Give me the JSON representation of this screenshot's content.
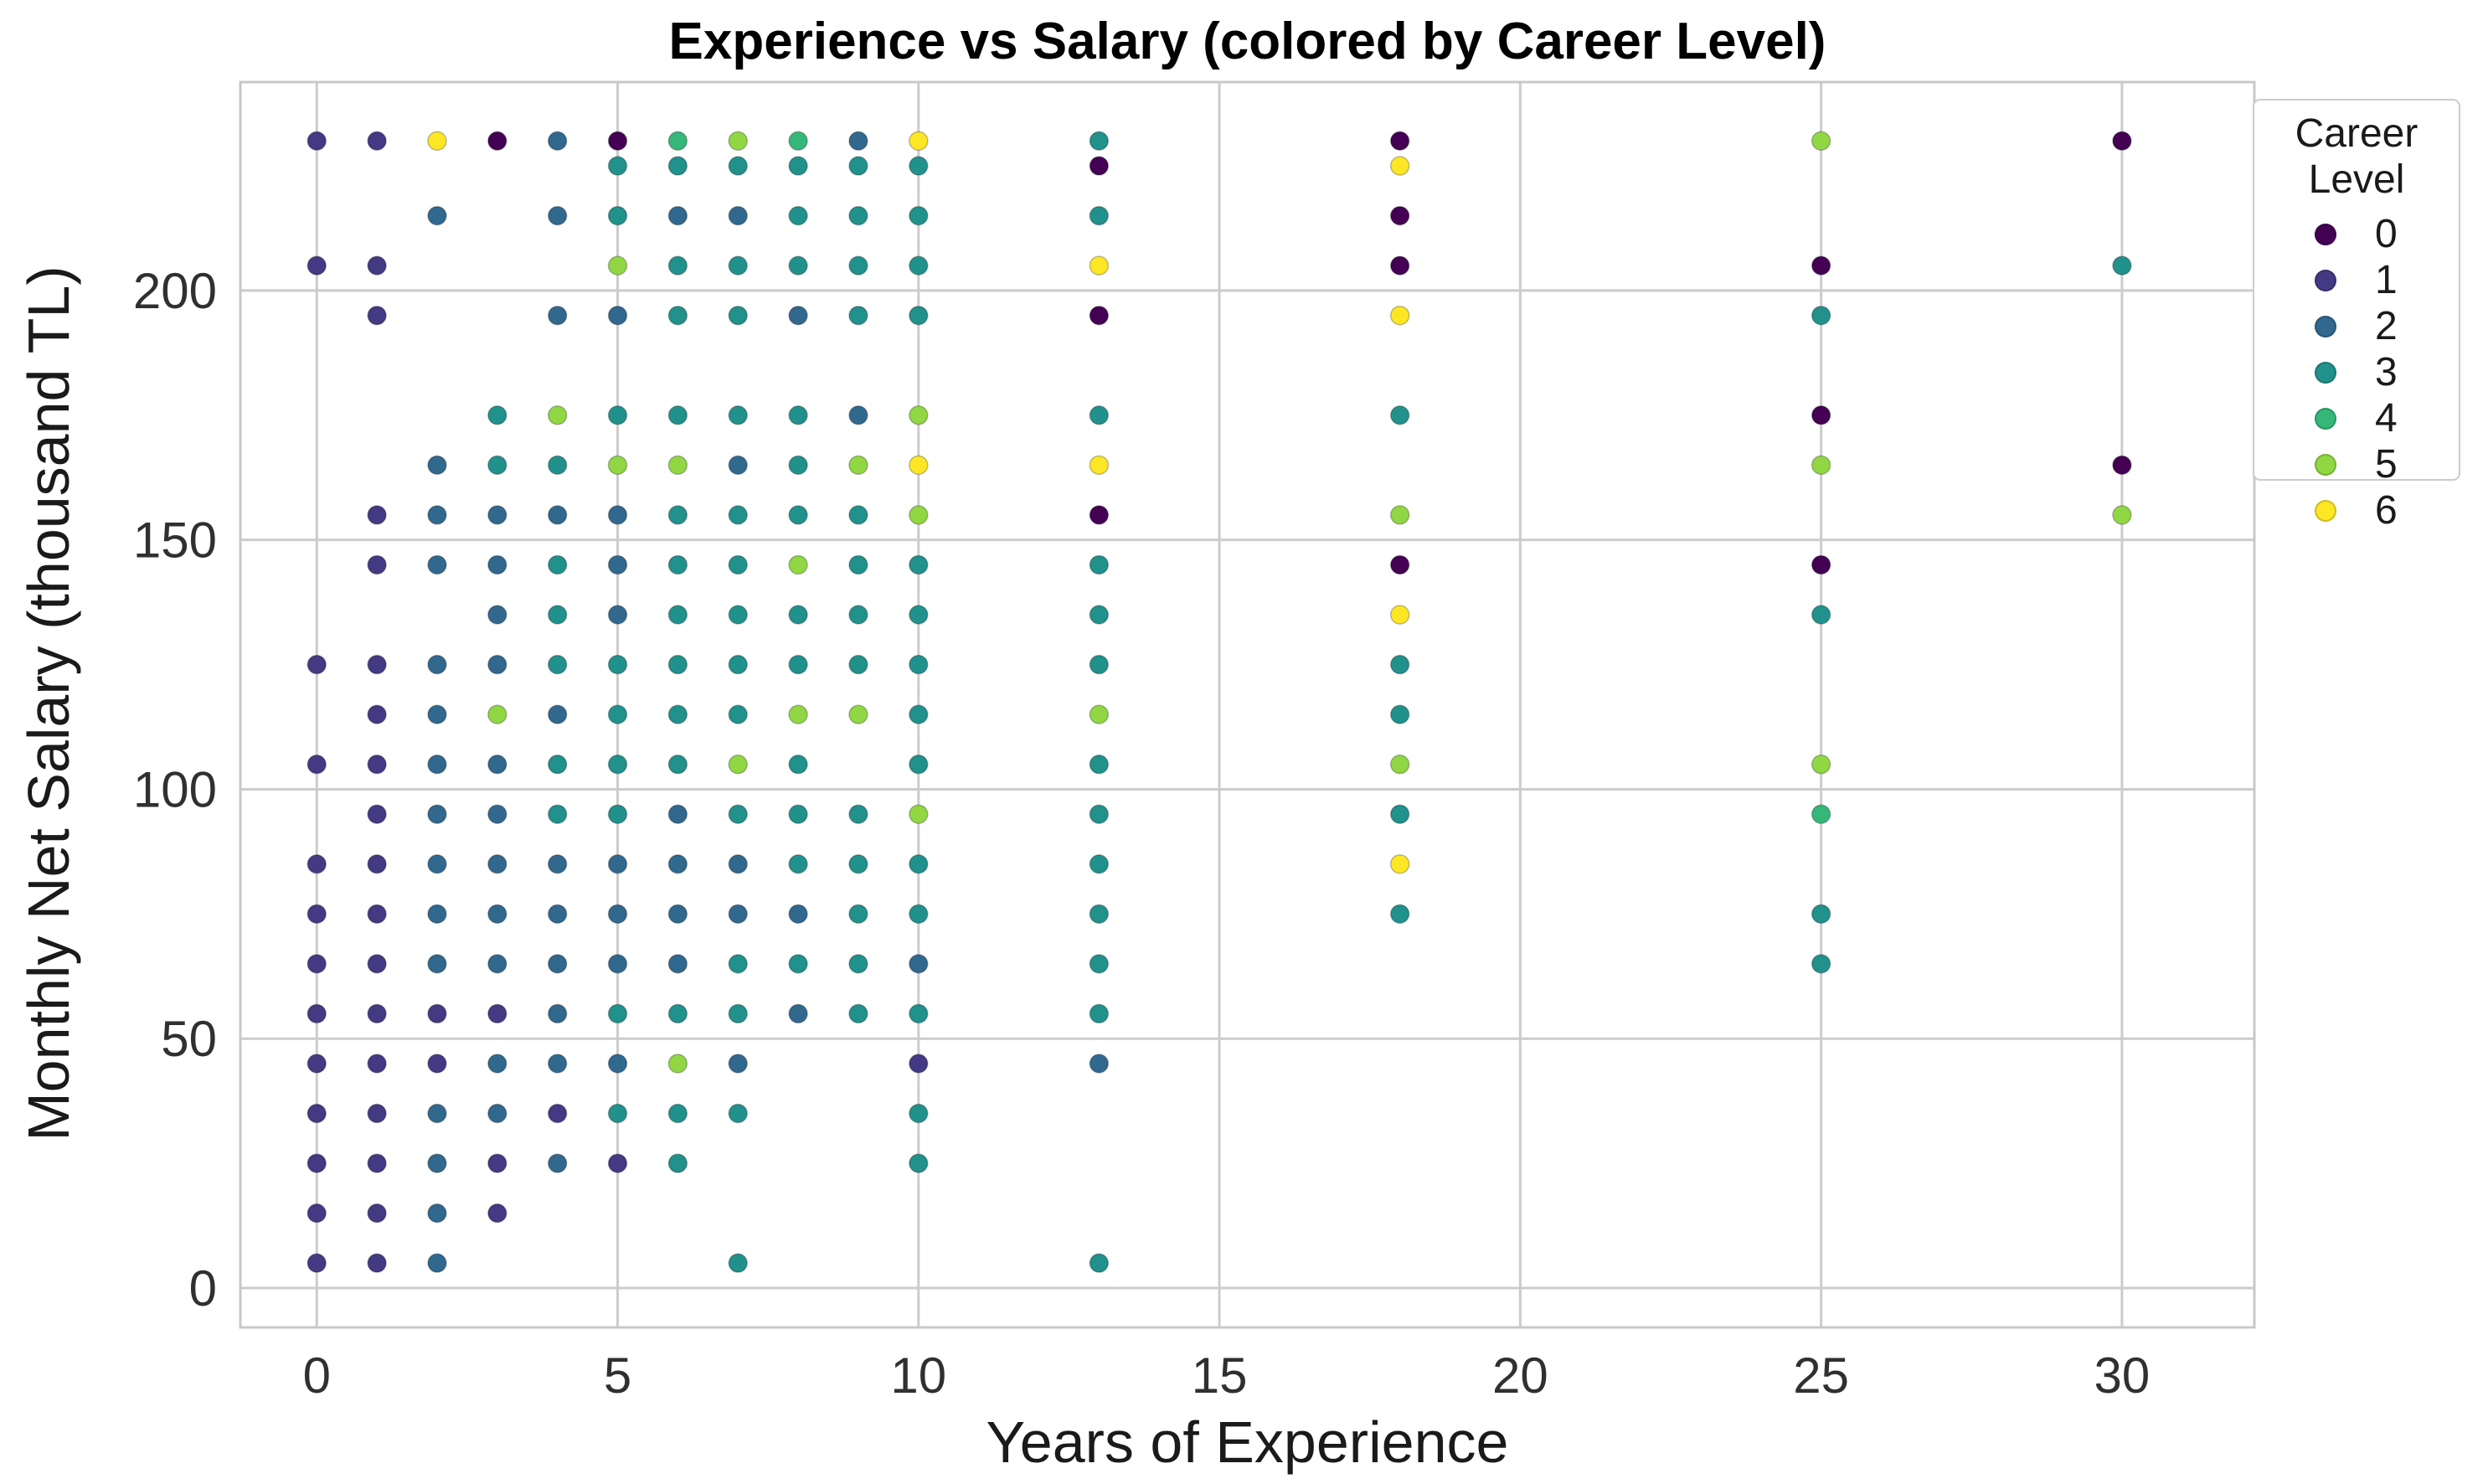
{
  "chart_data": {
    "type": "scatter",
    "title": "Experience vs Salary (colored by Career Level)",
    "xlabel": "Years of Experience",
    "ylabel": "Monthly Net Salary (thousand TL)",
    "xlim": [
      -1.27,
      32.2
    ],
    "ylim": [
      -7.9,
      241.8
    ],
    "xticks": [
      0,
      5,
      10,
      15,
      20,
      25,
      30
    ],
    "yticks": [
      0,
      50,
      100,
      150,
      200
    ],
    "grid": true,
    "legend": {
      "title": "Career Level",
      "position": "upper right"
    },
    "palette": [
      "#440154",
      "#443983",
      "#31688e",
      "#21918c",
      "#35b779",
      "#90d743",
      "#fde725"
    ],
    "series": [
      {
        "name": "0",
        "color": "#440154",
        "points": [
          [
            3,
            230
          ],
          [
            5,
            230
          ],
          [
            13,
            225
          ],
          [
            13,
            195
          ],
          [
            13,
            155
          ],
          [
            18,
            230
          ],
          [
            18,
            215
          ],
          [
            18,
            205
          ],
          [
            18,
            145
          ],
          [
            25,
            205
          ],
          [
            25,
            175
          ],
          [
            25,
            145
          ],
          [
            30,
            230
          ],
          [
            30,
            165
          ]
        ]
      },
      {
        "name": "1",
        "color": "#443983",
        "points": [
          [
            0,
            5
          ],
          [
            0,
            15
          ],
          [
            0,
            25
          ],
          [
            0,
            35
          ],
          [
            0,
            45
          ],
          [
            0,
            55
          ],
          [
            0,
            65
          ],
          [
            0,
            75
          ],
          [
            0,
            85
          ],
          [
            0,
            105
          ],
          [
            0,
            125
          ],
          [
            0,
            205
          ],
          [
            0,
            230
          ],
          [
            1,
            5
          ],
          [
            1,
            15
          ],
          [
            1,
            25
          ],
          [
            1,
            35
          ],
          [
            1,
            45
          ],
          [
            1,
            55
          ],
          [
            1,
            65
          ],
          [
            1,
            75
          ],
          [
            1,
            85
          ],
          [
            1,
            95
          ],
          [
            1,
            105
          ],
          [
            1,
            115
          ],
          [
            1,
            125
          ],
          [
            1,
            145
          ],
          [
            1,
            155
          ],
          [
            1,
            195
          ],
          [
            1,
            205
          ],
          [
            1,
            230
          ],
          [
            2,
            45
          ],
          [
            2,
            55
          ],
          [
            3,
            15
          ],
          [
            3,
            25
          ],
          [
            3,
            55
          ],
          [
            4,
            35
          ],
          [
            5,
            25
          ],
          [
            10,
            45
          ]
        ]
      },
      {
        "name": "2",
        "color": "#31688e",
        "points": [
          [
            2,
            5
          ],
          [
            2,
            15
          ],
          [
            2,
            25
          ],
          [
            2,
            35
          ],
          [
            2,
            65
          ],
          [
            2,
            75
          ],
          [
            2,
            85
          ],
          [
            2,
            95
          ],
          [
            2,
            105
          ],
          [
            2,
            115
          ],
          [
            2,
            125
          ],
          [
            2,
            145
          ],
          [
            2,
            155
          ],
          [
            2,
            165
          ],
          [
            2,
            215
          ],
          [
            3,
            35
          ],
          [
            3,
            45
          ],
          [
            3,
            65
          ],
          [
            3,
            75
          ],
          [
            3,
            85
          ],
          [
            3,
            95
          ],
          [
            3,
            105
          ],
          [
            3,
            125
          ],
          [
            3,
            135
          ],
          [
            3,
            145
          ],
          [
            3,
            155
          ],
          [
            4,
            25
          ],
          [
            4,
            45
          ],
          [
            4,
            55
          ],
          [
            4,
            65
          ],
          [
            4,
            75
          ],
          [
            4,
            85
          ],
          [
            4,
            115
          ],
          [
            4,
            155
          ],
          [
            4,
            195
          ],
          [
            4,
            215
          ],
          [
            4,
            230
          ],
          [
            5,
            45
          ],
          [
            5,
            65
          ],
          [
            5,
            75
          ],
          [
            5,
            85
          ],
          [
            5,
            135
          ],
          [
            5,
            145
          ],
          [
            5,
            155
          ],
          [
            5,
            195
          ],
          [
            6,
            65
          ],
          [
            6,
            75
          ],
          [
            6,
            85
          ],
          [
            6,
            95
          ],
          [
            6,
            215
          ],
          [
            7,
            45
          ],
          [
            7,
            75
          ],
          [
            7,
            85
          ],
          [
            7,
            165
          ],
          [
            7,
            215
          ],
          [
            8,
            55
          ],
          [
            8,
            75
          ],
          [
            8,
            195
          ],
          [
            9,
            175
          ],
          [
            9,
            230
          ],
          [
            10,
            65
          ],
          [
            13,
            45
          ]
        ]
      },
      {
        "name": "3",
        "color": "#21918c",
        "points": [
          [
            3,
            165
          ],
          [
            3,
            175
          ],
          [
            4,
            95
          ],
          [
            4,
            105
          ],
          [
            4,
            125
          ],
          [
            4,
            135
          ],
          [
            4,
            145
          ],
          [
            4,
            165
          ],
          [
            5,
            35
          ],
          [
            5,
            55
          ],
          [
            5,
            95
          ],
          [
            5,
            105
          ],
          [
            5,
            115
          ],
          [
            5,
            125
          ],
          [
            5,
            175
          ],
          [
            5,
            215
          ],
          [
            5,
            225
          ],
          [
            6,
            25
          ],
          [
            6,
            35
          ],
          [
            6,
            55
          ],
          [
            6,
            105
          ],
          [
            6,
            115
          ],
          [
            6,
            125
          ],
          [
            6,
            135
          ],
          [
            6,
            145
          ],
          [
            6,
            155
          ],
          [
            6,
            175
          ],
          [
            6,
            195
          ],
          [
            6,
            205
          ],
          [
            6,
            225
          ],
          [
            7,
            5
          ],
          [
            7,
            35
          ],
          [
            7,
            55
          ],
          [
            7,
            65
          ],
          [
            7,
            95
          ],
          [
            7,
            115
          ],
          [
            7,
            125
          ],
          [
            7,
            135
          ],
          [
            7,
            145
          ],
          [
            7,
            155
          ],
          [
            7,
            175
          ],
          [
            7,
            195
          ],
          [
            7,
            205
          ],
          [
            7,
            225
          ],
          [
            8,
            65
          ],
          [
            8,
            85
          ],
          [
            8,
            95
          ],
          [
            8,
            105
          ],
          [
            8,
            125
          ],
          [
            8,
            135
          ],
          [
            8,
            155
          ],
          [
            8,
            165
          ],
          [
            8,
            175
          ],
          [
            8,
            205
          ],
          [
            8,
            215
          ],
          [
            8,
            225
          ],
          [
            9,
            55
          ],
          [
            9,
            65
          ],
          [
            9,
            75
          ],
          [
            9,
            85
          ],
          [
            9,
            95
          ],
          [
            9,
            125
          ],
          [
            9,
            135
          ],
          [
            9,
            145
          ],
          [
            9,
            155
          ],
          [
            9,
            195
          ],
          [
            9,
            205
          ],
          [
            9,
            215
          ],
          [
            9,
            225
          ],
          [
            10,
            25
          ],
          [
            10,
            35
          ],
          [
            10,
            55
          ],
          [
            10,
            75
          ],
          [
            10,
            85
          ],
          [
            10,
            105
          ],
          [
            10,
            115
          ],
          [
            10,
            125
          ],
          [
            10,
            135
          ],
          [
            10,
            145
          ],
          [
            10,
            195
          ],
          [
            10,
            205
          ],
          [
            10,
            215
          ],
          [
            10,
            225
          ],
          [
            13,
            5
          ],
          [
            13,
            55
          ],
          [
            13,
            65
          ],
          [
            13,
            75
          ],
          [
            13,
            85
          ],
          [
            13,
            95
          ],
          [
            13,
            105
          ],
          [
            13,
            125
          ],
          [
            13,
            135
          ],
          [
            13,
            145
          ],
          [
            13,
            175
          ],
          [
            13,
            215
          ],
          [
            13,
            230
          ],
          [
            18,
            75
          ],
          [
            18,
            95
          ],
          [
            18,
            115
          ],
          [
            18,
            125
          ],
          [
            18,
            175
          ],
          [
            25,
            65
          ],
          [
            25,
            75
          ],
          [
            25,
            135
          ],
          [
            25,
            195
          ],
          [
            30,
            205
          ]
        ]
      },
      {
        "name": "4",
        "color": "#35b779",
        "points": [
          [
            6,
            230
          ],
          [
            8,
            230
          ],
          [
            25,
            95
          ]
        ]
      },
      {
        "name": "5",
        "color": "#90d743",
        "points": [
          [
            3,
            115
          ],
          [
            4,
            175
          ],
          [
            5,
            165
          ],
          [
            5,
            205
          ],
          [
            6,
            45
          ],
          [
            6,
            165
          ],
          [
            7,
            105
          ],
          [
            7,
            230
          ],
          [
            8,
            115
          ],
          [
            8,
            145
          ],
          [
            9,
            115
          ],
          [
            9,
            165
          ],
          [
            10,
            95
          ],
          [
            10,
            155
          ],
          [
            10,
            175
          ],
          [
            13,
            115
          ],
          [
            18,
            105
          ],
          [
            18,
            155
          ],
          [
            25,
            105
          ],
          [
            25,
            165
          ],
          [
            25,
            230
          ],
          [
            30,
            155
          ]
        ]
      },
      {
        "name": "6",
        "color": "#fde725",
        "points": [
          [
            2,
            230
          ],
          [
            10,
            165
          ],
          [
            10,
            230
          ],
          [
            13,
            165
          ],
          [
            13,
            205
          ],
          [
            18,
            85
          ],
          [
            18,
            135
          ],
          [
            18,
            195
          ],
          [
            18,
            225
          ]
        ]
      }
    ]
  }
}
